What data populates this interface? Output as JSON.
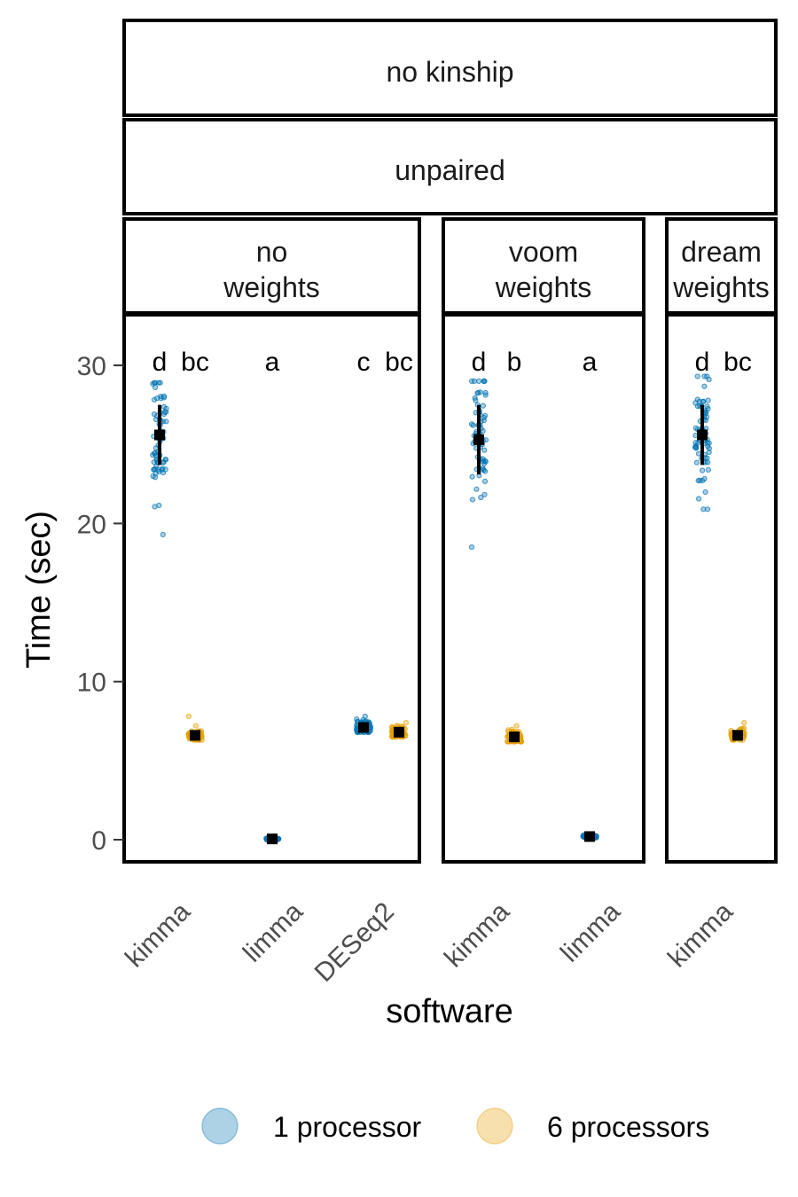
{
  "chart_data": {
    "type": "scatter",
    "facet_strips": {
      "top": "no kinship",
      "second": "unpaired"
    },
    "panels": [
      {
        "strip": [
          "no",
          "weights"
        ],
        "categories": [
          "kimma",
          "limma",
          "DESeq2"
        ],
        "groups": [
          {
            "software": "kimma",
            "series": "1 processor",
            "mean": 25.6,
            "sd": 1.9,
            "min": 19.3,
            "max": 28.9,
            "label": "d"
          },
          {
            "software": "kimma",
            "series": "6 processors",
            "mean": 6.6,
            "sd": 0.2,
            "min": 6.3,
            "max": 7.8,
            "label": "bc"
          },
          {
            "software": "limma",
            "series": "1 processor",
            "mean": 0.05,
            "sd": 0.03,
            "min": 0.0,
            "max": 0.15,
            "label": "a"
          },
          {
            "software": "DESeq2",
            "series": "1 processor",
            "mean": 7.1,
            "sd": 0.25,
            "min": 6.8,
            "max": 7.8,
            "label": "c"
          },
          {
            "software": "DESeq2",
            "series": "6 processors",
            "mean": 6.8,
            "sd": 0.2,
            "min": 6.5,
            "max": 7.4,
            "label": "bc"
          }
        ]
      },
      {
        "strip": [
          "voom",
          "weights"
        ],
        "categories": [
          "kimma",
          "limma"
        ],
        "groups": [
          {
            "software": "kimma",
            "series": "1 processor",
            "mean": 25.3,
            "sd": 2.2,
            "min": 18.5,
            "max": 29.0,
            "label": "d"
          },
          {
            "software": "kimma",
            "series": "6 processors",
            "mean": 6.5,
            "sd": 0.25,
            "min": 6.2,
            "max": 7.2,
            "label": "b"
          },
          {
            "software": "limma",
            "series": "1 processor",
            "mean": 0.2,
            "sd": 0.05,
            "min": 0.1,
            "max": 0.3,
            "label": "a"
          }
        ]
      },
      {
        "strip": [
          "dream",
          "weights"
        ],
        "categories": [
          "kimma"
        ],
        "groups": [
          {
            "software": "kimma",
            "series": "1 processor",
            "mean": 25.6,
            "sd": 1.9,
            "min": 20.9,
            "max": 29.3,
            "label": "d"
          },
          {
            "software": "kimma",
            "series": "6 processors",
            "mean": 6.6,
            "sd": 0.2,
            "min": 6.3,
            "max": 7.4,
            "label": "bc"
          }
        ]
      }
    ],
    "y_axis": {
      "title": "Time (sec)",
      "ticks": [
        0,
        10,
        20,
        30
      ],
      "ylim": [
        -1.4,
        33.2
      ]
    },
    "x_axis": {
      "title": "software"
    },
    "legend": {
      "position": "bottom",
      "entries": [
        {
          "name": "1 processor",
          "color": "#0072B2"
        },
        {
          "name": "6 processors",
          "color": "#E69F00"
        }
      ]
    },
    "grid": false
  }
}
